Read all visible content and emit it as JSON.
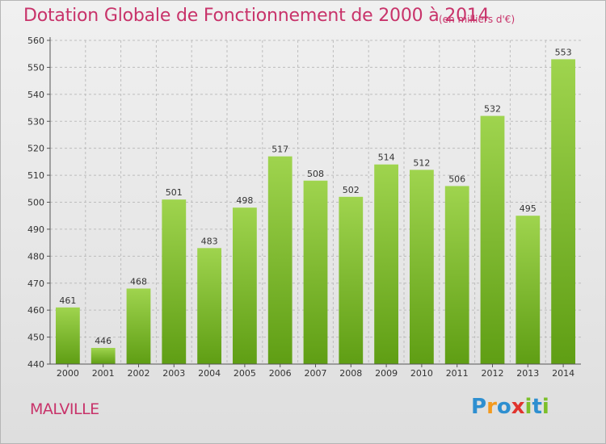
{
  "header": {
    "title": "Dotation Globale de Fonctionnement de 2000 à 2014",
    "subtitle": "(en milliers d'€)"
  },
  "footer": {
    "city": "MALVILLE",
    "logo": {
      "text": "Proxiti",
      "letters": [
        {
          "char": "P",
          "color": "#2e8fd0"
        },
        {
          "char": "r",
          "color": "#f39a1e"
        },
        {
          "char": "o",
          "color": "#2e8fd0"
        },
        {
          "char": "x",
          "color": "#e0342e"
        },
        {
          "char": "i",
          "color": "#7cbf2a"
        },
        {
          "char": "t",
          "color": "#2e8fd0"
        },
        {
          "char": "i",
          "color": "#7cbf2a"
        }
      ]
    }
  },
  "colors": {
    "title": "#c8336a",
    "bar_top": "#9fd44e",
    "bar_bottom": "#5f9e14",
    "grid": "#bdbdbd",
    "axis": "#555555"
  },
  "chart_data": {
    "type": "bar",
    "categories": [
      "2000",
      "2001",
      "2002",
      "2003",
      "2004",
      "2005",
      "2006",
      "2007",
      "2008",
      "2009",
      "2010",
      "2011",
      "2012",
      "2013",
      "2014"
    ],
    "values": [
      461,
      446,
      468,
      501,
      483,
      498,
      517,
      508,
      502,
      514,
      512,
      506,
      532,
      495,
      553
    ],
    "data_labels": [
      "461",
      "446",
      "468",
      "501",
      "483",
      "498",
      "517",
      "508",
      "502",
      "514",
      "512",
      "506",
      "532",
      "495",
      "553"
    ],
    "ylim": [
      440,
      560
    ],
    "yticks": [
      440,
      450,
      460,
      470,
      480,
      490,
      500,
      510,
      520,
      530,
      540,
      550,
      560
    ],
    "xlabel": "",
    "ylabel": "",
    "grid": true,
    "legend": false
  }
}
